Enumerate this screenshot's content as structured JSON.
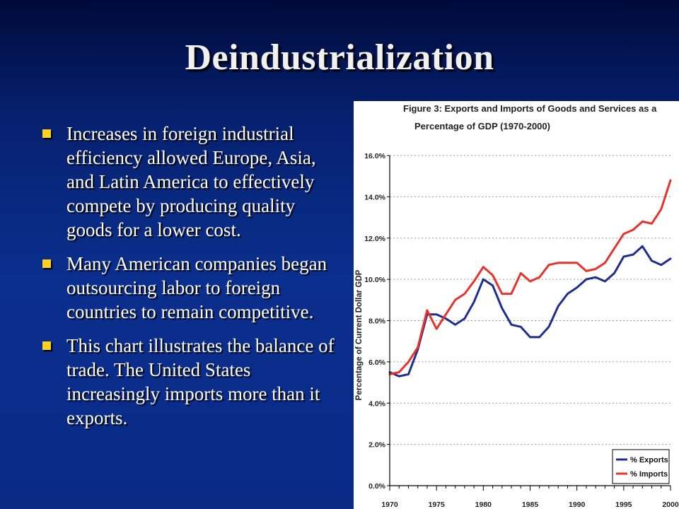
{
  "slide": {
    "title": "Deindustrialization",
    "bullets": [
      "Increases in foreign industrial efficiency allowed Europe, Asia, and Latin America to effectively compete by producing quality goods for a lower cost.",
      "Many American companies began outsourcing labor to foreign countries to remain competitive.",
      "This chart illustrates the balance of trade. The United States increasingly imports more than it exports."
    ],
    "bullet_color": "#ffd21f"
  },
  "chart_data": {
    "type": "line",
    "title": [
      "Figure 3: Exports and Imports of Goods and Services as a",
      "Percentage of GDP (1970-2000)"
    ],
    "xlabel": "",
    "ylabel": "Percentage of Current Dollar GDP",
    "xlim": [
      1970,
      2000
    ],
    "ylim": [
      0,
      16
    ],
    "x_ticks": [
      1970,
      1975,
      1980,
      1985,
      1990,
      1995,
      2000
    ],
    "y_ticks": [
      "0.0%",
      "2.0%",
      "4.0%",
      "6.0%",
      "8.0%",
      "10.0%",
      "12.0%",
      "14.0%",
      "16.0%"
    ],
    "grid": "horizontal dashed",
    "legend": "bottom-right",
    "x": [
      1970,
      1971,
      1972,
      1973,
      1974,
      1975,
      1976,
      1977,
      1978,
      1979,
      1980,
      1981,
      1982,
      1983,
      1984,
      1985,
      1986,
      1987,
      1988,
      1989,
      1990,
      1991,
      1992,
      1993,
      1994,
      1995,
      1996,
      1997,
      1998,
      1999,
      2000
    ],
    "series": [
      {
        "name": "% Exports",
        "color": "#1f2d8f",
        "values": [
          5.5,
          5.3,
          5.4,
          6.6,
          8.3,
          8.3,
          8.1,
          7.8,
          8.1,
          8.9,
          10.0,
          9.7,
          8.6,
          7.8,
          7.7,
          7.2,
          7.2,
          7.7,
          8.7,
          9.3,
          9.6,
          10.0,
          10.1,
          9.9,
          10.3,
          11.1,
          11.2,
          11.6,
          10.9,
          10.7,
          11.0
        ]
      },
      {
        "name": "% Imports",
        "color": "#e8322b",
        "values": [
          5.4,
          5.5,
          6.0,
          6.7,
          8.5,
          7.6,
          8.3,
          9.0,
          9.3,
          9.9,
          10.6,
          10.2,
          9.3,
          9.3,
          10.3,
          9.9,
          10.1,
          10.7,
          10.8,
          10.8,
          10.8,
          10.4,
          10.5,
          10.8,
          11.5,
          12.2,
          12.4,
          12.8,
          12.7,
          13.4,
          14.8
        ]
      }
    ]
  }
}
